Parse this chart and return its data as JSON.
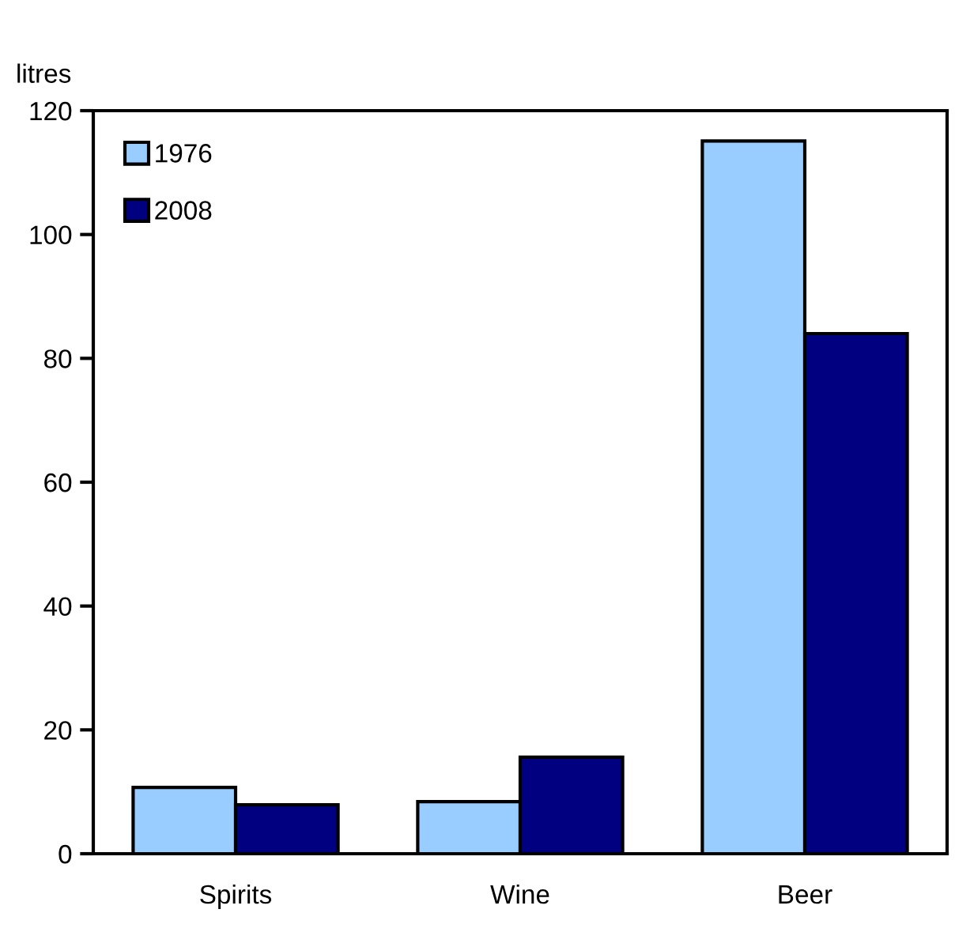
{
  "chart_data": {
    "type": "bar",
    "ylabel": "litres",
    "categories": [
      "Spirits",
      "Wine",
      "Beer"
    ],
    "series": [
      {
        "name": "1976",
        "color": "#99ccff",
        "values": [
          10.7,
          8.4,
          115.1
        ]
      },
      {
        "name": "2008",
        "color": "#000080",
        "values": [
          7.9,
          15.6,
          84.0
        ]
      }
    ],
    "ylim": [
      0,
      120
    ],
    "yticks": [
      0,
      20,
      40,
      60,
      80,
      100,
      120
    ],
    "grid": false,
    "legend": "top left"
  }
}
